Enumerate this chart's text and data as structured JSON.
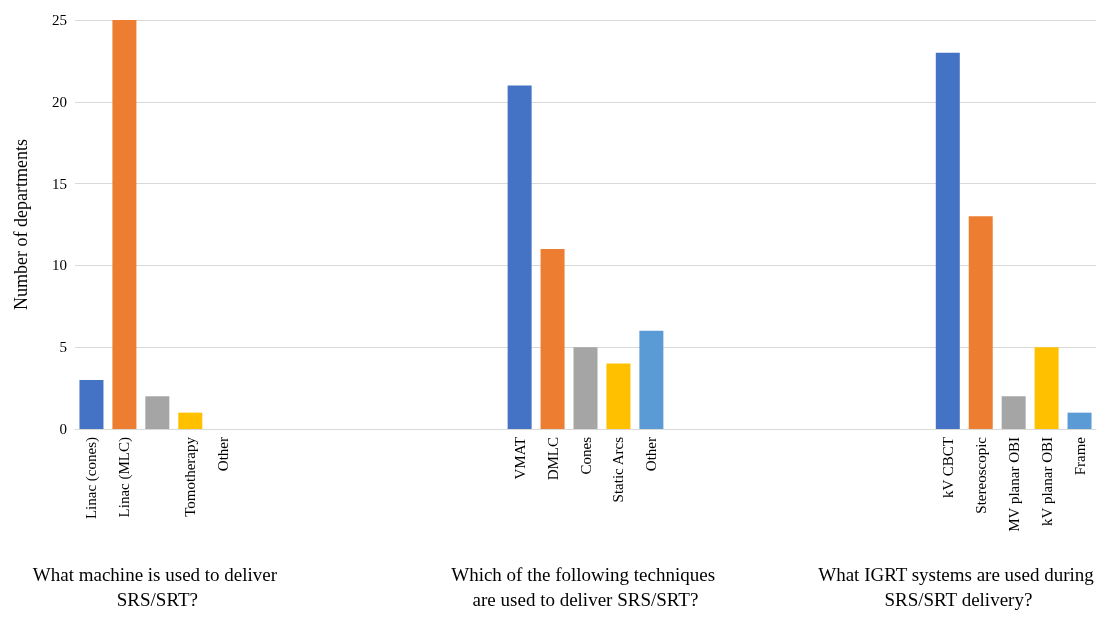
{
  "chart_data": {
    "type": "bar",
    "ylabel": "Number of departments",
    "categories": [
      "Linac (cones)",
      "Linac (MLC)",
      null,
      "Tomotherapy",
      "Other",
      null,
      null,
      null,
      null,
      null,
      null,
      null,
      null,
      "VMAT",
      "DMLC",
      "Cones",
      "Static Arcs",
      "Other",
      null,
      null,
      null,
      null,
      null,
      null,
      null,
      null,
      "kV CBCT",
      "Stereoscopic",
      "MV planar OBI",
      "kV planar OBI",
      "Frame"
    ],
    "values": [
      3,
      25,
      2,
      1,
      0,
      null,
      null,
      null,
      null,
      null,
      null,
      null,
      null,
      21,
      11,
      5,
      4,
      6,
      null,
      null,
      null,
      null,
      null,
      null,
      null,
      null,
      23,
      13,
      2,
      5,
      1
    ],
    "colors": [
      "#4472c4",
      "#ed7d31",
      "#a5a5a5",
      "#ffc000",
      "#5b9bd5",
      null,
      null,
      null,
      null,
      null,
      null,
      null,
      null,
      "#4472c4",
      "#ed7d31",
      "#a5a5a5",
      "#ffc000",
      "#5b9bd5",
      null,
      null,
      null,
      null,
      null,
      null,
      null,
      null,
      "#4472c4",
      "#ed7d31",
      "#a5a5a5",
      "#ffc000",
      "#5b9bd5"
    ],
    "ylim": [
      0,
      25
    ],
    "yticks": [
      0,
      5,
      10,
      15,
      20,
      25
    ],
    "grid": "y",
    "annotations": [
      "What machine is used to deliver SRS/SRT?",
      "Which of the following techniques are used to deliver SRS/SRT?",
      "What IGRT systems are used during SRS/SRT delivery?"
    ]
  }
}
